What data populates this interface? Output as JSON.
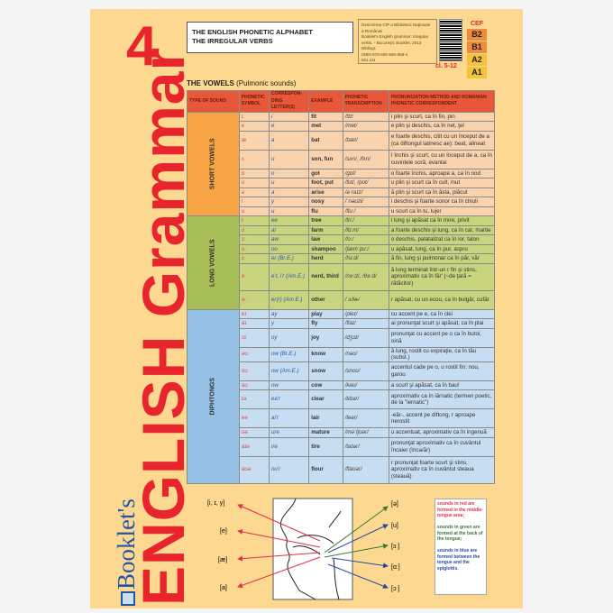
{
  "cover": {
    "number": "4",
    "brand": "Booklet's",
    "title": "ENGLISH Grammar"
  },
  "title_box": {
    "line1": "THE ENGLISH PHONETIC ALPHABET",
    "line2": "THE IRREGULAR VERBS"
  },
  "cip": [
    "Descrierea CIP a Bibliotecii Naţionale a României",
    "Booklet's English grammar: Irregular verbs. - Bucureşti: Booklet, 2012",
    "Bibliogr.",
    "ISBN 978-606-590-055-4",
    "811.111"
  ],
  "class_label": "cl. 5-12",
  "cef": {
    "label": "CEF",
    "levels": [
      {
        "name": "B2",
        "color": "#f08a3c"
      },
      {
        "name": "B1",
        "color": "#f08a3c"
      },
      {
        "name": "A2",
        "color": "#f5c23c"
      },
      {
        "name": "A1",
        "color": "#f5c23c"
      }
    ]
  },
  "section": {
    "title": "THE VOWELS",
    "subtitle": "(Pulmonic sounds)"
  },
  "columns": [
    "TYPE OF SOUND",
    "PHONETIC SYMBOL",
    "CORRESPON-DING LETTER(S)",
    "EXAMPLE",
    "PHONETIC TRANSCRIPTION",
    "PRONUNCIATION METHOD AND ROMANIAN PHONETIC CORRESPONDENT"
  ],
  "groups": [
    {
      "type": "SHORT VOWELS",
      "cls": "short",
      "rows": [
        [
          "ɪ",
          "i",
          "fit",
          "/fɪt/",
          "i plin şi scurt, ca în fin, pin",
          1
        ],
        [
          "e",
          "e",
          "met",
          "/met/",
          "e plin şi deschis, ca în net, ţel",
          1
        ],
        [
          "æ",
          "a",
          "bat",
          "/bæt/",
          "e foarte deschis, citit cu un început de a (ca diftongul latinesc ae): beat, alineat",
          2
        ],
        [
          "ʌ",
          "u",
          "son, fun",
          "/sʌn/, /fʌn/",
          "î închis şi scurt, cu un început de a, ca în cuvintele soră, evantai",
          2
        ],
        [
          "ɒ",
          "o",
          "got",
          "/gɒt/",
          "o foarte închis, aproape a, ca în nod",
          1
        ],
        [
          "ʊ",
          "u",
          "foot, put",
          "/fʊt/, /pʊt/",
          "u plin şi scurt ca în cult, mut",
          1
        ],
        [
          "ə",
          "a",
          "arise",
          "/əˈraɪz/",
          "ă plin şi scurt ca în ăsta, plăcut",
          1
        ],
        [
          "i",
          "y",
          "nosy",
          "/ˈnəʊzi/",
          "i deschis şi foarte sonor ca în chiuli",
          1
        ],
        [
          "u",
          "u",
          "flu",
          "/fluː/",
          "u scurt ca în tu, lujer",
          1
        ]
      ]
    },
    {
      "type": "LONG VOWELS",
      "cls": "long",
      "rows": [
        [
          "iː",
          "ee",
          "tree",
          "/triː/",
          "i lung şi apăsat ca în mire, privit",
          1
        ],
        [
          "ɑː",
          "ar",
          "farm",
          "/fɑːm/",
          "a foarte deschis şi lung, ca în car, martie",
          1
        ],
        [
          "ɔː",
          "aw",
          "law",
          "/lɔː/",
          "o deschis, palatalizat ca în lor, talon",
          1
        ],
        [
          "uː",
          "oo",
          "shampoo",
          "/ʃæmˈpuː/",
          "u apăsat, lung, ca în pur, aspru",
          1
        ],
        [
          "ɜː",
          "er (Br.E.)",
          "herd",
          "/hɜːd/",
          "ă fin, lung şi pulmonar ca în păr, văr",
          1
        ],
        [
          "ɝ",
          "e'r, i'r (Am.E.)",
          "nerd, third",
          "/nɝːd/, /θɝːd/",
          "ă lung terminat într-un r fin şi stins, aproximativ ca în făr' (~de ţară = rătăcitor)",
          3
        ],
        [
          "ɚː",
          "er(r) (Am.E.)",
          "other",
          "/ˈʌðɚ/",
          "r apăsat, cu un ecou, ca în bulgăr, cufăr",
          2
        ]
      ]
    },
    {
      "type": "DIPHTONGS",
      "cls": "diph",
      "rows": [
        [
          "eɪ",
          "ay",
          "play",
          "/pleɪ/",
          "cu accent pe e, ca în clei",
          1
        ],
        [
          "aɪ",
          "y",
          "fly",
          "/flaɪ/",
          "ai pronunţat scurt şi apăsat, ca în plai",
          1
        ],
        [
          "ɔɪ",
          "oy",
          "joy",
          "/dʒɔɪ/",
          "pronunţat cu accent pe o ca în butoi, oină",
          2
        ],
        [
          "əʊ",
          "ow (Br.E.)",
          "know",
          "/nəʊ/",
          "ă lung, rostit cu expiraţie, ca în tău (subst.)",
          1
        ],
        [
          "oʊ",
          "ow (Am.E.)",
          "snow",
          "/snoʊ/",
          "accentul cade pe o, u rostit fin: nou, garou",
          2
        ],
        [
          "aʊ",
          "ow",
          "cow",
          "/kaʊ/",
          "a scurt şi apăsat, ca în bau!",
          1
        ],
        [
          "ɪə",
          "ea'r",
          "clear",
          "/klɪər/",
          "aproximativ ca în iărnatic (termen poetic, de la \"iernatic\")",
          2
        ],
        [
          "eə",
          "ai'r",
          "lair",
          "/leər/",
          "-eăr-, accent pe diftong, r aproape nerostit",
          2
        ],
        [
          "ʊə",
          "ure",
          "mature",
          "/məˈtjʊər/",
          "u accentuat, aproximativ ca în ingenuă",
          1
        ],
        [
          "aɪə",
          "ire",
          "tire",
          "/taɪər/",
          "pronunţat aproximativ ca în cuvântul încaier (înca/ăr)",
          2
        ],
        [
          "aʊə",
          "ou'r",
          "flour",
          "/flaʊər/",
          "r pronunţat foarte scurt şi stins, aproximativ ca în cuvântul steaua (steauă)",
          3
        ]
      ]
    }
  ],
  "diagram": {
    "left_labels": [
      "[i, ɪ, y]",
      "[e]",
      "[æ]",
      "[a]"
    ],
    "right_labels": [
      "[ə]",
      "[u]",
      "[ɜː]",
      "[ɑː]",
      "[ɔː]"
    ]
  },
  "legend": {
    "red": "sounds in red are formed in the middle-tongue area;",
    "green": "sounds in green are formed at the back of the tongue;",
    "blue": "sounds in blue are formed between the tongue and the epiglottis.",
    "colors": {
      "red": "#e0304a",
      "green": "#3a7a2a",
      "blue": "#2a4aa0"
    }
  }
}
